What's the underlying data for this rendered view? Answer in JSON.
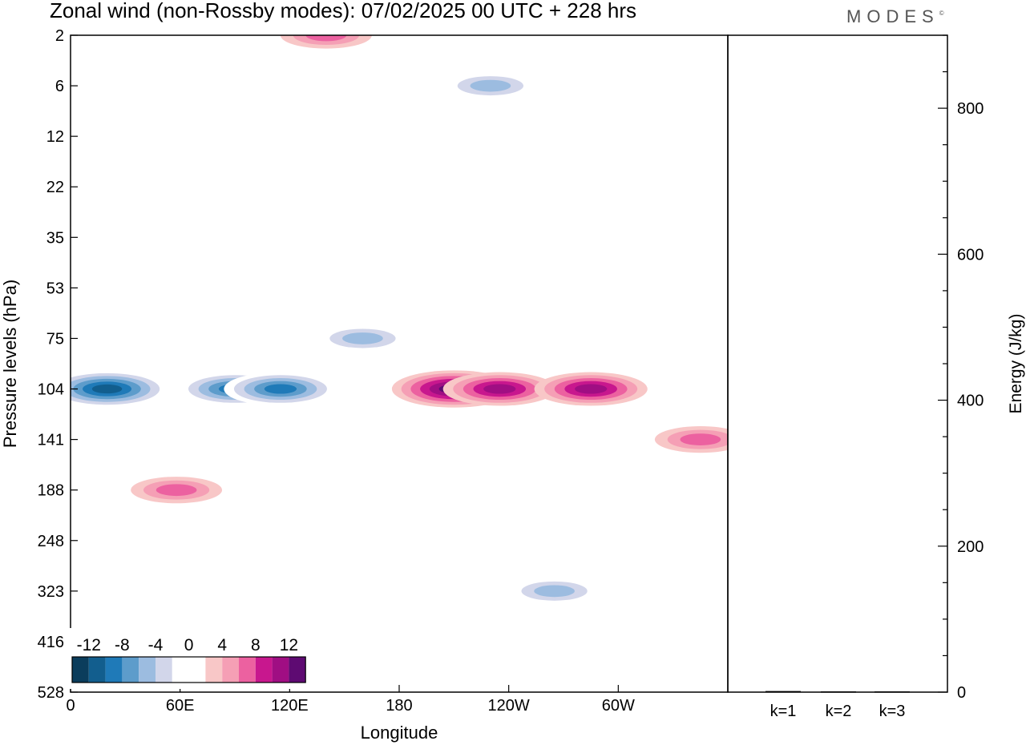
{
  "title": "Zonal wind (non-Rossby modes):  07/02/2025  00 UTC  + 228 hrs",
  "logo_text": "MODES",
  "logo_mark": "©",
  "chart_data": [
    {
      "type": "heatmap",
      "xlabel": "Longitude",
      "ylabel": "Pressure levels (hPa)",
      "x_ticks": [
        "0",
        "60E",
        "120E",
        "180",
        "120W",
        "60W"
      ],
      "x_tick_degrees": [
        0,
        60,
        120,
        180,
        240,
        300
      ],
      "xlim": [
        0,
        360
      ],
      "y_ticks": [
        "2",
        "6",
        "12",
        "22",
        "35",
        "53",
        "75",
        "104",
        "141",
        "188",
        "248",
        "323",
        "416",
        "528"
      ],
      "colorbar": {
        "labels": [
          "-12",
          "-8",
          "-4",
          "0",
          "4",
          "8",
          "12"
        ],
        "colors": [
          "#0b3d5c",
          "#125e8e",
          "#1f7ab8",
          "#5d9ccb",
          "#9cbce0",
          "#d2d6ea",
          "#ffffff",
          "#ffffff",
          "#f8c7c7",
          "#f59fb5",
          "#ec61a0",
          "#c8178e",
          "#a00e83",
          "#5e0a72"
        ]
      },
      "features": [
        {
          "lon": 20,
          "level": "104",
          "value": -12
        },
        {
          "lon": 90,
          "level": "104",
          "value": -10
        },
        {
          "lon": 115,
          "level": "104",
          "value": -10
        },
        {
          "lon": 160,
          "level": "75",
          "value": -6
        },
        {
          "lon": 210,
          "level": "104",
          "value": 12
        },
        {
          "lon": 235,
          "level": "104",
          "value": 10
        },
        {
          "lon": 285,
          "level": "104",
          "value": 10
        },
        {
          "lon": 345,
          "level": "141",
          "value": 6
        },
        {
          "lon": 265,
          "level": "323",
          "value": -6
        },
        {
          "lon": 58,
          "level": "188",
          "value": 6
        },
        {
          "lon": 140,
          "level": "2",
          "value": 6
        },
        {
          "lon": 230,
          "level": "6",
          "value": -6
        }
      ]
    },
    {
      "type": "bar",
      "ylabel": "Energy (J/kg)",
      "categories": [
        "k=1",
        "k=2",
        "k=3"
      ],
      "values": [
        1.5,
        1,
        1
      ],
      "ylim": [
        0,
        900
      ],
      "y_ticks": [
        "0",
        "200",
        "400",
        "600",
        "800"
      ]
    }
  ]
}
